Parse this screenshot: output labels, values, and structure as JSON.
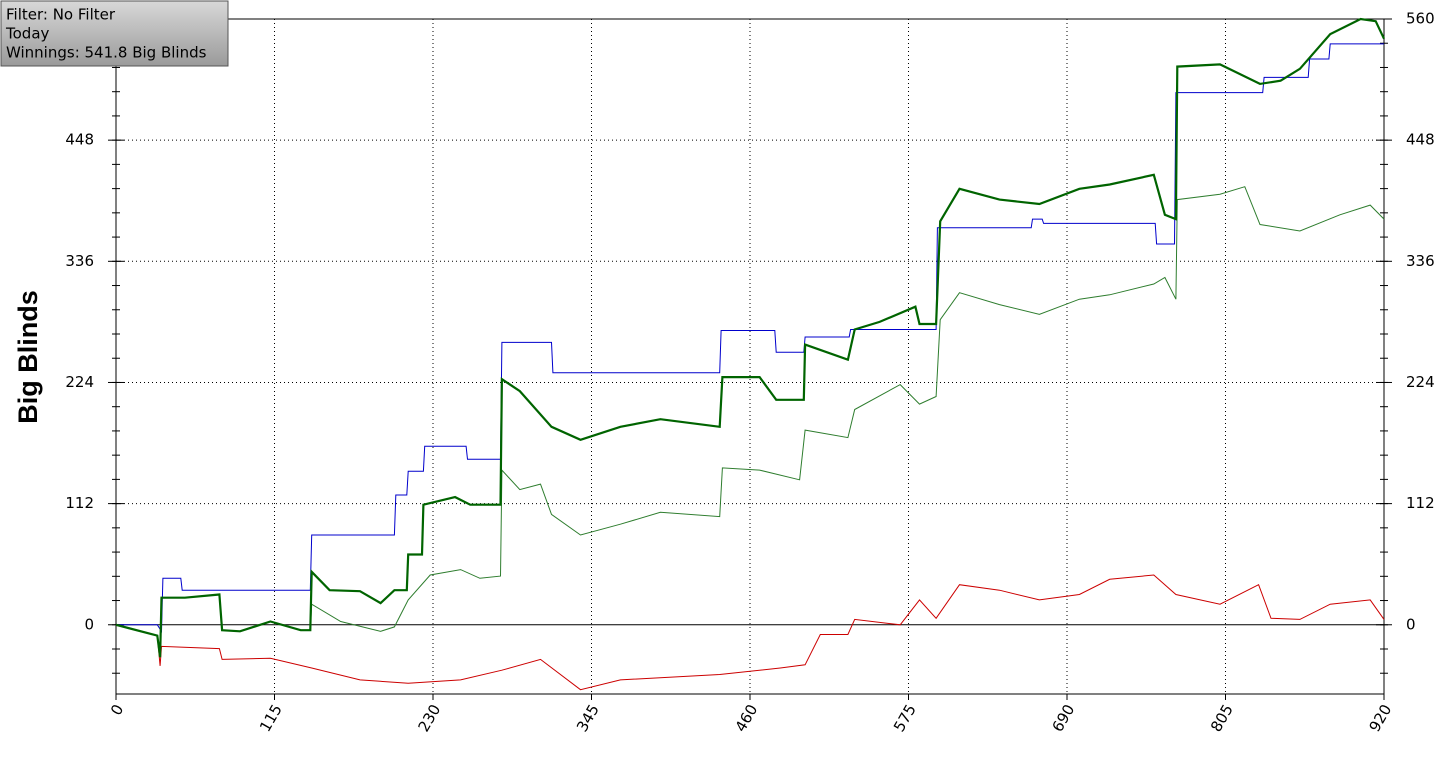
{
  "chart_data": {
    "type": "line",
    "ylabel": "Big Blinds",
    "annotations": [
      "Filter: No Filter",
      "Today",
      "Winnings: 541.8 Big Blinds"
    ],
    "xlim": [
      0,
      920
    ],
    "xticks": [
      0,
      115,
      230,
      345,
      460,
      575,
      690,
      805,
      920
    ],
    "ylim": [
      -64,
      560
    ],
    "yticks": [
      0,
      112,
      224,
      336,
      448,
      560
    ],
    "grid": true,
    "series": [
      {
        "color": "#0000cc",
        "width": 1,
        "x": [
          0,
          30,
          33,
          34,
          47,
          48,
          141,
          142,
          202,
          203,
          211,
          212,
          223,
          224,
          254,
          255,
          279,
          280,
          316,
          317,
          438,
          439,
          478,
          479,
          499,
          500,
          532,
          533,
          595,
          596,
          664,
          665,
          672,
          673,
          754,
          755,
          768,
          769,
          832,
          833,
          865,
          866,
          880,
          881,
          920
        ],
        "values": [
          0,
          0,
          -6,
          43,
          43,
          32,
          32,
          83,
          83,
          120,
          120,
          142,
          142,
          165,
          165,
          153,
          153,
          261,
          261,
          233,
          233,
          272,
          272,
          252,
          252,
          266,
          266,
          273,
          273,
          367,
          367,
          375,
          375,
          371,
          371,
          352,
          352,
          492,
          492,
          506,
          506,
          523,
          523,
          537,
          537
        ]
      },
      {
        "color": "#2e7d2e",
        "width": 1,
        "x": [
          0,
          30,
          32,
          33,
          50,
          75,
          77,
          90,
          112,
          134,
          141,
          142,
          163,
          192,
          202,
          212,
          228,
          250,
          264,
          279,
          280,
          293,
          308,
          316,
          337,
          366,
          395,
          438,
          440,
          467,
          496,
          500,
          531,
          536,
          569,
          583,
          595,
          598,
          612,
          641,
          670,
          699,
          721,
          753,
          761,
          769,
          770,
          801,
          819,
          830,
          859,
          888,
          910,
          920
        ],
        "values": [
          0,
          -10,
          -30,
          25,
          25,
          28,
          -5,
          -6,
          3,
          -5,
          -5,
          19,
          3,
          -6,
          -2,
          23,
          46,
          51,
          43,
          45,
          143,
          125,
          130,
          102,
          83,
          93,
          104,
          100,
          145,
          143,
          134,
          180,
          173,
          199,
          222,
          204,
          211,
          282,
          307,
          296,
          287,
          301,
          305,
          315,
          321,
          301,
          393,
          398,
          405,
          370,
          364,
          379,
          388,
          375
        ]
      },
      {
        "color": "#cc0000",
        "width": 1,
        "x": [
          0,
          30,
          32,
          33,
          75,
          77,
          112,
          142,
          177,
          212,
          250,
          280,
          308,
          337,
          366,
          438,
          482,
          500,
          511,
          531,
          536,
          569,
          583,
          595,
          612,
          641,
          670,
          699,
          721,
          753,
          769,
          801,
          829,
          838,
          859,
          881,
          910,
          920
        ],
        "values": [
          0,
          -10,
          -38,
          -20,
          -22,
          -32,
          -31,
          -40,
          -51,
          -54,
          -51,
          -42,
          -32,
          -60,
          -51,
          -46,
          -40,
          -37,
          -9,
          -9,
          5,
          0,
          23,
          6,
          37,
          32,
          23,
          28,
          42,
          46,
          28,
          19,
          37,
          6,
          5,
          19,
          23,
          5
        ]
      },
      {
        "color": "#006400",
        "width": 2.2,
        "x": [
          0,
          30,
          32,
          33,
          50,
          75,
          77,
          90,
          112,
          134,
          141,
          142,
          155,
          177,
          192,
          202,
          211,
          212,
          222,
          223,
          246,
          257,
          279,
          280,
          293,
          316,
          337,
          366,
          395,
          438,
          440,
          467,
          479,
          499,
          500,
          531,
          536,
          554,
          580,
          583,
          595,
          598,
          612,
          641,
          670,
          699,
          721,
          753,
          761,
          769,
          770,
          801,
          830,
          845,
          859,
          881,
          903,
          914,
          920
        ],
        "values": [
          0,
          -10,
          -30,
          25,
          25,
          28,
          -5,
          -6,
          3,
          -5,
          -5,
          49,
          32,
          31,
          20,
          32,
          32,
          65,
          65,
          111,
          118,
          111,
          111,
          227,
          216,
          183,
          171,
          183,
          190,
          183,
          229,
          229,
          208,
          208,
          259,
          245,
          273,
          280,
          294,
          278,
          278,
          373,
          403,
          393,
          389,
          403,
          407,
          416,
          379,
          375,
          516,
          518,
          500,
          503,
          514,
          546,
          560,
          558,
          541.8
        ]
      }
    ]
  }
}
